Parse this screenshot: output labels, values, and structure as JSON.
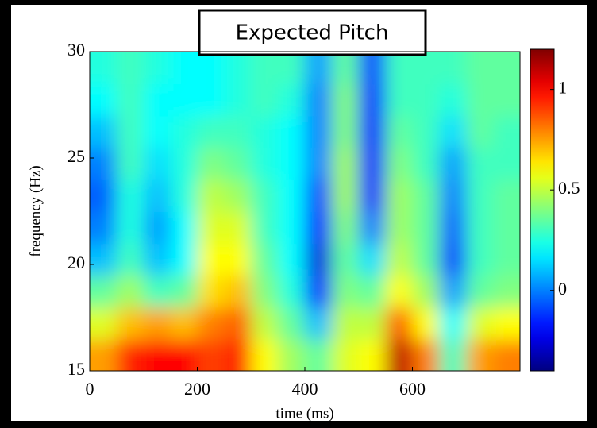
{
  "chart_data": {
    "type": "heatmap",
    "title": "Expected Pitch",
    "x_label": "time (ms)",
    "y_label": "frequency (Hz)",
    "xlim": [
      0,
      800
    ],
    "xticks": [
      0,
      200,
      400,
      600
    ],
    "ylim": [
      15,
      30
    ],
    "yticks": [
      15,
      20,
      25,
      30
    ],
    "colormap": "jet",
    "clim": [
      -0.4,
      1.2
    ],
    "cticks": [
      0,
      0.5,
      1
    ],
    "x": [
      25,
      75,
      125,
      175,
      225,
      275,
      325,
      375,
      425,
      475,
      525,
      575,
      625,
      675,
      725,
      775
    ],
    "y": [
      15.75,
      17.25,
      18.75,
      20.25,
      21.75,
      23.25,
      24.75,
      26.25,
      27.75,
      29.25
    ],
    "z": [
      [
        0.75,
        0.95,
        1.0,
        1.0,
        0.9,
        0.95,
        0.6,
        0.45,
        0.35,
        0.55,
        0.6,
        1.1,
        0.8,
        0.3,
        0.75,
        0.8
      ],
      [
        0.55,
        0.7,
        0.75,
        0.7,
        0.8,
        0.85,
        0.5,
        0.35,
        0.1,
        0.5,
        0.5,
        0.85,
        0.6,
        0.2,
        0.55,
        0.6
      ],
      [
        0.35,
        0.45,
        0.3,
        0.35,
        0.65,
        0.7,
        0.4,
        0.25,
        -0.15,
        0.4,
        0.35,
        0.6,
        0.45,
        0.05,
        0.35,
        0.4
      ],
      [
        0.1,
        0.3,
        0.1,
        0.2,
        0.6,
        0.6,
        0.35,
        0.2,
        -0.25,
        0.35,
        0.15,
        0.5,
        0.35,
        -0.1,
        0.3,
        0.35
      ],
      [
        0.0,
        0.25,
        0.05,
        0.2,
        0.55,
        0.55,
        0.3,
        0.2,
        -0.2,
        0.4,
        0.0,
        0.45,
        0.35,
        -0.05,
        0.3,
        0.35
      ],
      [
        -0.05,
        0.25,
        0.1,
        0.25,
        0.5,
        0.45,
        0.3,
        0.2,
        -0.1,
        0.45,
        -0.15,
        0.45,
        0.35,
        0.0,
        0.3,
        0.35
      ],
      [
        0.0,
        0.3,
        0.15,
        0.25,
        0.4,
        0.35,
        0.25,
        0.2,
        0.0,
        0.45,
        -0.2,
        0.4,
        0.3,
        0.05,
        0.3,
        0.3
      ],
      [
        0.1,
        0.3,
        0.2,
        0.25,
        0.3,
        0.3,
        0.25,
        0.2,
        0.0,
        0.4,
        -0.2,
        0.35,
        0.3,
        0.15,
        0.35,
        0.3
      ],
      [
        0.2,
        0.3,
        0.2,
        0.2,
        0.2,
        0.25,
        0.3,
        0.25,
        0.0,
        0.4,
        -0.15,
        0.3,
        0.3,
        0.25,
        0.35,
        0.35
      ],
      [
        0.25,
        0.3,
        0.25,
        0.2,
        0.2,
        0.25,
        0.3,
        0.3,
        0.05,
        0.35,
        -0.1,
        0.3,
        0.3,
        0.3,
        0.35,
        0.35
      ]
    ]
  }
}
